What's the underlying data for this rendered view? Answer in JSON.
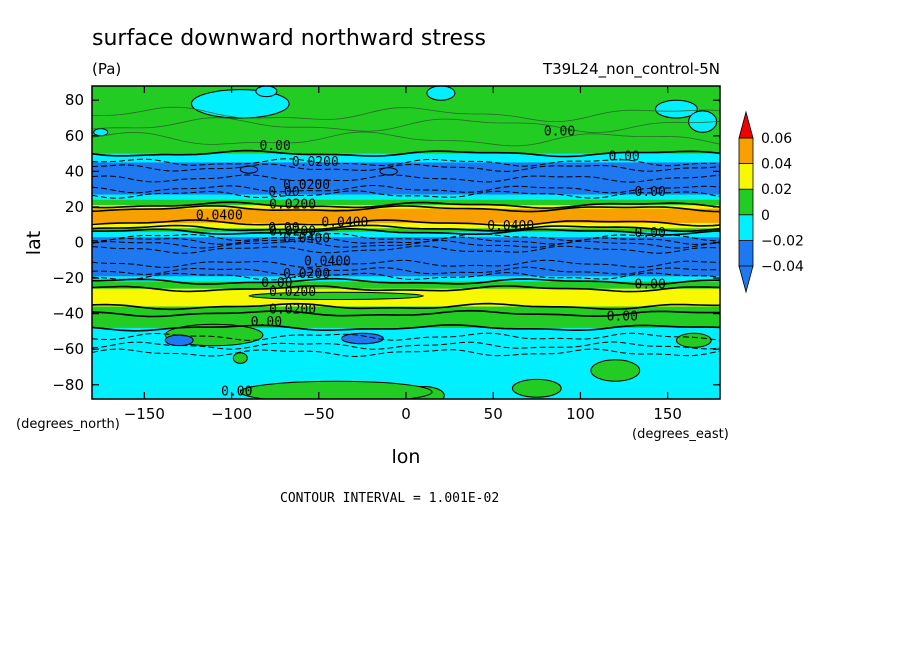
{
  "chart_data": {
    "type": "heatmap",
    "title": "surface downward northward stress",
    "units": "(Pa)",
    "dataset": "T39L24_non_control-5N",
    "xlabel": "lon",
    "ylabel": "lat",
    "x_units": "(degrees_east)",
    "y_units": "(degrees_north)",
    "xlim": [
      -180,
      180
    ],
    "ylim": [
      -88,
      88
    ],
    "x_ticks": [
      -150,
      -100,
      -50,
      0,
      50,
      100,
      150
    ],
    "y_ticks": [
      -80,
      -60,
      -40,
      -20,
      0,
      20,
      40,
      60,
      80
    ],
    "contour_interval_text": "CONTOUR INTERVAL = 1.001E-02",
    "legend": {
      "levels": [
        "0.06",
        "0.04",
        "0.02",
        "0",
        "−0.02",
        "−0.04"
      ],
      "bins": [
        {
          "min": -0.06,
          "max": -0.04,
          "color": "#1e78f0"
        },
        {
          "min": -0.04,
          "max": -0.02,
          "color": "#1e78f0"
        },
        {
          "min": -0.02,
          "max": 0.0,
          "color": "#00f0ff"
        },
        {
          "min": 0.0,
          "max": 0.02,
          "color": "#22cc22"
        },
        {
          "min": 0.02,
          "max": 0.04,
          "color": "#f8f800"
        },
        {
          "min": 0.04,
          "max": 0.06,
          "color": "#f8a000"
        },
        {
          "min": 0.06,
          "max": 0.08,
          "color": "#f00000"
        }
      ]
    },
    "zonal_bands": [
      {
        "lat_min": 68,
        "lat_max": 88,
        "value_class": "0 to 0.02",
        "color": "#22cc22"
      },
      {
        "lat_min": 48,
        "lat_max": 68,
        "value_class": "0 to 0.02",
        "color": "#22cc22"
      },
      {
        "lat_min": 45,
        "lat_max": 50,
        "value_class": "-0.02 to 0",
        "color": "#00f0ff"
      },
      {
        "lat_min": 27,
        "lat_max": 45,
        "value_class": "-0.04 to -0.02",
        "color": "#1e78f0"
      },
      {
        "lat_min": 24,
        "lat_max": 27,
        "value_class": "-0.02 to 0",
        "color": "#00f0ff"
      },
      {
        "lat_min": 21,
        "lat_max": 24,
        "value_class": "0 to 0.02",
        "color": "#22cc22"
      },
      {
        "lat_min": 19,
        "lat_max": 21,
        "value_class": "0.02 to 0.04",
        "color": "#f8f800"
      },
      {
        "lat_min": 11,
        "lat_max": 19,
        "value_class": "0.04 to 0.06",
        "color": "#f8a000"
      },
      {
        "lat_min": 8,
        "lat_max": 11,
        "value_class": "0.02 to 0.04",
        "color": "#f8f800"
      },
      {
        "lat_min": 6,
        "lat_max": 8,
        "value_class": "0 to 0.02",
        "color": "#22cc22"
      },
      {
        "lat_min": 3,
        "lat_max": 6,
        "value_class": "-0.02 to 0",
        "color": "#00f0ff"
      },
      {
        "lat_min": -16,
        "lat_max": 3,
        "value_class": "-0.06 to -0.04",
        "color": "#1e78f0"
      },
      {
        "lat_min": -19,
        "lat_max": -16,
        "value_class": "-0.04 to -0.02",
        "color": "#1e78f0"
      },
      {
        "lat_min": -22,
        "lat_max": -19,
        "value_class": "-0.02 to 0",
        "color": "#00f0ff"
      },
      {
        "lat_min": -26,
        "lat_max": -22,
        "value_class": "0 to 0.02",
        "color": "#22cc22"
      },
      {
        "lat_min": -36,
        "lat_max": -26,
        "value_class": "0.02 to 0.04",
        "color": "#f8f800"
      },
      {
        "lat_min": -40,
        "lat_max": -36,
        "value_class": "0 to 0.02",
        "color": "#22cc22"
      },
      {
        "lat_min": -48,
        "lat_max": -40,
        "value_class": "0 to 0.02",
        "color": "#22cc22"
      },
      {
        "lat_min": -88,
        "lat_max": -48,
        "value_class": "-0.02 to 0",
        "color": "#00f0ff"
      }
    ],
    "contour_labels": [
      {
        "text": "0.0400",
        "lon": -107,
        "lat": 15
      },
      {
        "text": "0.0400",
        "lon": -35,
        "lat": 11
      },
      {
        "text": "0.0400",
        "lon": 60,
        "lat": 9
      },
      {
        "text": "0.0200",
        "lon": -52,
        "lat": 45
      },
      {
        "text": "0.0200",
        "lon": -57,
        "lat": 32
      },
      {
        "text": "0.0200",
        "lon": -65,
        "lat": 21
      },
      {
        "text": "0.0200",
        "lon": -65,
        "lat": 6
      },
      {
        "text": "0.0400",
        "lon": -57,
        "lat": 2
      },
      {
        "text": "0.0400",
        "lon": -45,
        "lat": -11
      },
      {
        "text": "0.0200",
        "lon": -57,
        "lat": -18
      },
      {
        "text": "0.0200",
        "lon": -65,
        "lat": -28
      },
      {
        "text": "0.0200",
        "lon": -65,
        "lat": -38
      },
      {
        "text": "0.00",
        "lon": -75,
        "lat": 54
      },
      {
        "text": "0.00",
        "lon": 88,
        "lat": 62
      },
      {
        "text": "0.00",
        "lon": 125,
        "lat": 48
      },
      {
        "text": "0.00",
        "lon": -70,
        "lat": 28
      },
      {
        "text": "0.00",
        "lon": 140,
        "lat": 28
      },
      {
        "text": "0.00",
        "lon": -70,
        "lat": 8
      },
      {
        "text": "0.00",
        "lon": 140,
        "lat": 5
      },
      {
        "text": "0.00",
        "lon": -74,
        "lat": -23
      },
      {
        "text": "0.00",
        "lon": 140,
        "lat": -24
      },
      {
        "text": "0.00",
        "lon": -80,
        "lat": -45
      },
      {
        "text": "0.00",
        "lon": 124,
        "lat": -42
      },
      {
        "text": "0.00",
        "lon": -97,
        "lat": -84
      }
    ]
  }
}
